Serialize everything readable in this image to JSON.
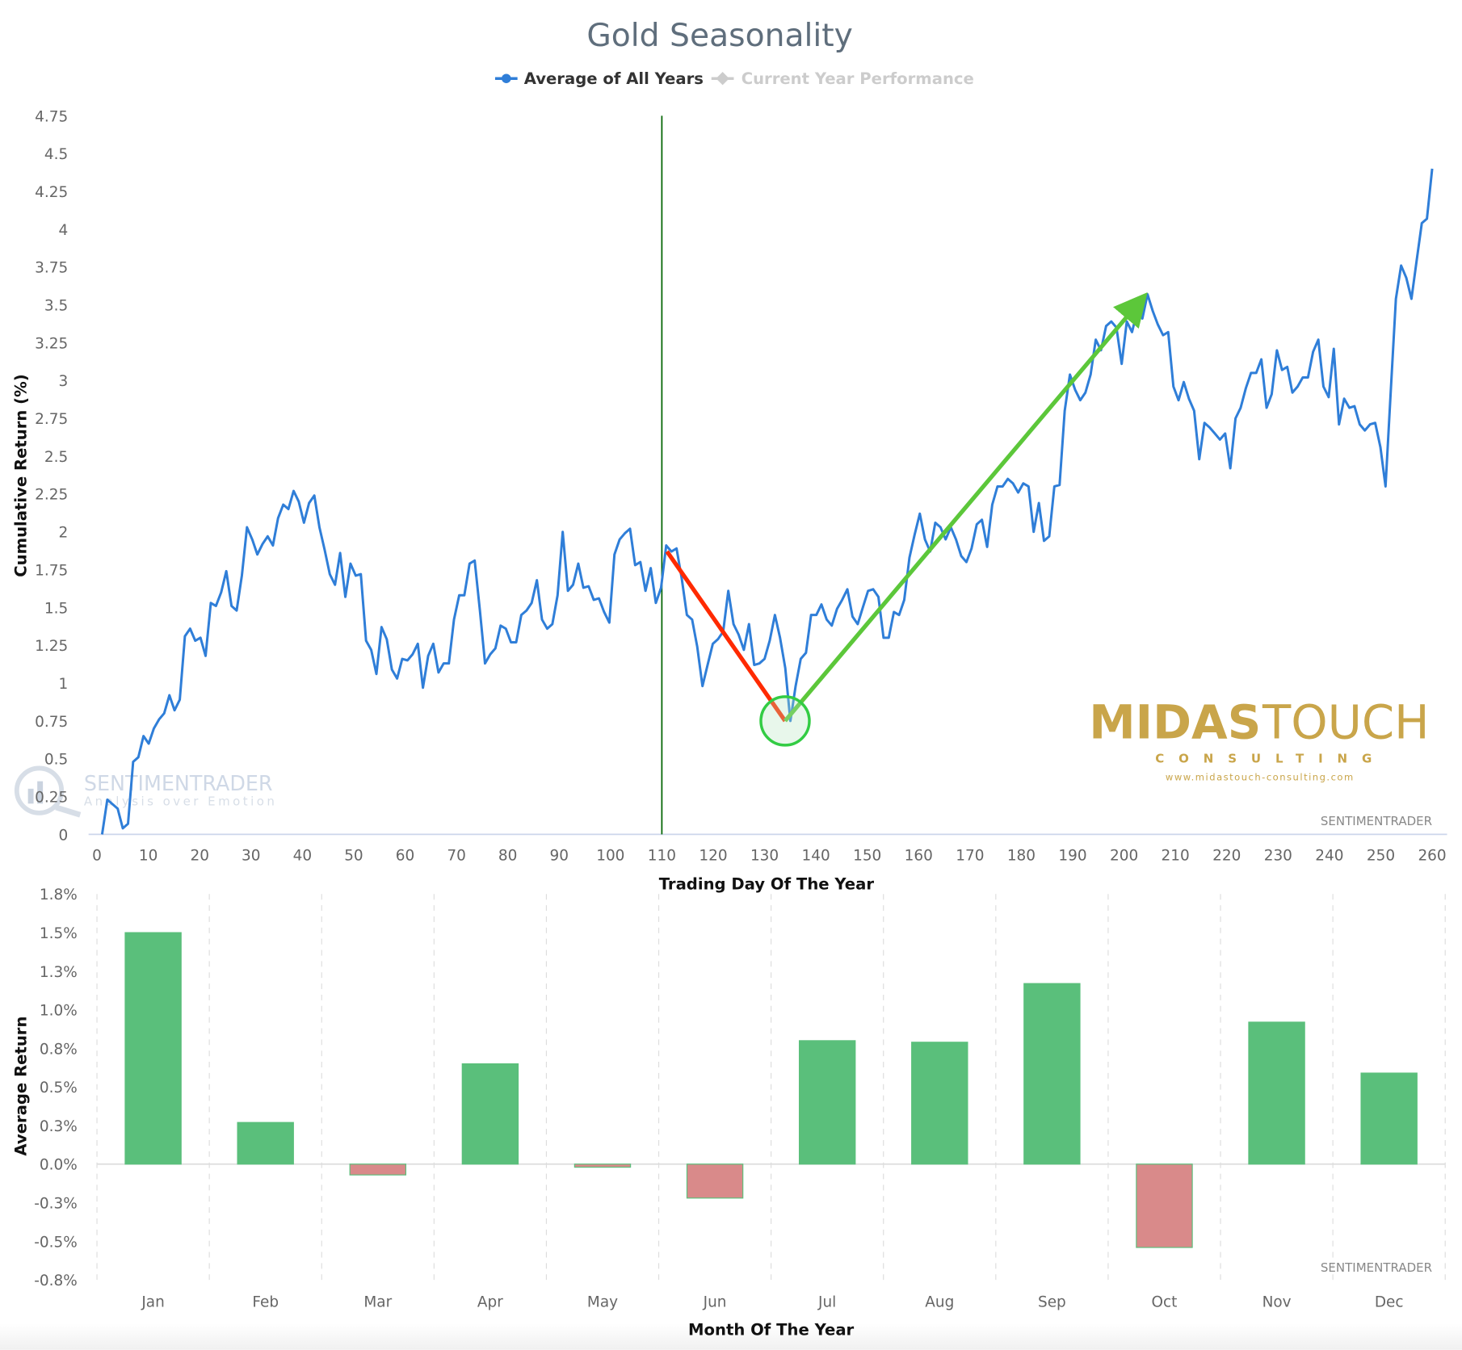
{
  "chart_data": [
    {
      "type": "line",
      "title": "Gold Seasonality",
      "legend": [
        {
          "label": "Average of All Years",
          "color": "#2f7ed8",
          "visible": true
        },
        {
          "label": "Current Year Performance",
          "color": "#cccccc",
          "visible": false
        }
      ],
      "legend_placement": "top-center",
      "xlabel": "Trading Day Of The Year",
      "ylabel": "Cumulative Return (%)",
      "xlim": [
        0,
        260
      ],
      "ylim": [
        0,
        4.75
      ],
      "x_ticks": [
        "0",
        "10",
        "20",
        "30",
        "40",
        "50",
        "60",
        "70",
        "80",
        "90",
        "100",
        "110",
        "120",
        "130",
        "140",
        "150",
        "160",
        "170",
        "180",
        "190",
        "200",
        "210",
        "220",
        "230",
        "240",
        "250",
        "260"
      ],
      "y_ticks": [
        "0",
        "0.25",
        "0.5",
        "0.75",
        "1",
        "1.25",
        "1.5",
        "1.75",
        "2",
        "2.25",
        "2.5",
        "2.75",
        "3",
        "3.25",
        "3.5",
        "3.75",
        "4",
        "4.25",
        "4.5",
        "4.75"
      ],
      "x_start_day": 1,
      "x_end_day": 260,
      "series": [
        {
          "name": "Average of All Years",
          "values": [
            0,
            0.23,
            0.2,
            0.17,
            0.04,
            0.07,
            0.48,
            0.51,
            0.65,
            0.6,
            0.7,
            0.76,
            0.8,
            0.92,
            0.82,
            0.89,
            1.31,
            1.36,
            1.28,
            1.3,
            1.18,
            1.53,
            1.51,
            1.6,
            1.74,
            1.51,
            1.48,
            1.71,
            2.03,
            1.95,
            1.85,
            1.92,
            1.97,
            1.91,
            2.09,
            2.18,
            2.15,
            2.27,
            2.2,
            2.06,
            2.19,
            2.24,
            2.03,
            1.88,
            1.72,
            1.65,
            1.86,
            1.57,
            1.79,
            1.71,
            1.72,
            1.28,
            1.22,
            1.06,
            1.37,
            1.29,
            1.09,
            1.03,
            1.16,
            1.15,
            1.19,
            1.26,
            0.97,
            1.18,
            1.26,
            1.07,
            1.13,
            1.13,
            1.42,
            1.58,
            1.58,
            1.79,
            1.81,
            1.48,
            1.13,
            1.19,
            1.23,
            1.38,
            1.36,
            1.27,
            1.27,
            1.45,
            1.48,
            1.53,
            1.68,
            1.42,
            1.36,
            1.39,
            1.58,
            2.0,
            1.61,
            1.65,
            1.79,
            1.63,
            1.64,
            1.55,
            1.56,
            1.47,
            1.4,
            1.85,
            1.95,
            1.99,
            2.02,
            1.78,
            1.8,
            1.61,
            1.76,
            1.53,
            1.63,
            1.91,
            1.87,
            1.89,
            1.69,
            1.45,
            1.42,
            1.24,
            0.98,
            1.12,
            1.26,
            1.29,
            1.34,
            1.61,
            1.39,
            1.32,
            1.22,
            1.39,
            1.12,
            1.13,
            1.16,
            1.28,
            1.45,
            1.3,
            1.1,
            0.75,
            0.98,
            1.16,
            1.2,
            1.45,
            1.45,
            1.52,
            1.42,
            1.38,
            1.49,
            1.55,
            1.62,
            1.44,
            1.39,
            1.5,
            1.61,
            1.62,
            1.57,
            1.3,
            1.3,
            1.47,
            1.45,
            1.55,
            1.83,
            1.98,
            2.12,
            1.95,
            1.87,
            2.06,
            2.03,
            1.95,
            2.03,
            1.95,
            1.84,
            1.8,
            1.89,
            2.05,
            2.08,
            1.9,
            2.18,
            2.3,
            2.3,
            2.35,
            2.32,
            2.26,
            2.32,
            2.3,
            2.0,
            2.19,
            1.94,
            1.97,
            2.3,
            2.31,
            2.8,
            3.04,
            2.94,
            2.87,
            2.92,
            3.04,
            3.27,
            3.2,
            3.36,
            3.39,
            3.35,
            3.11,
            3.39,
            3.32,
            3.46,
            3.41,
            3.57,
            3.46,
            3.37,
            3.3,
            3.32,
            2.96,
            2.87,
            2.99,
            2.88,
            2.8,
            2.48,
            2.72,
            2.69,
            2.65,
            2.61,
            2.65,
            2.42,
            2.75,
            2.82,
            2.95,
            3.05,
            3.05,
            3.14,
            2.82,
            2.91,
            3.2,
            3.07,
            3.09,
            2.92,
            2.96,
            3.02,
            3.02,
            3.19,
            3.27,
            2.96,
            2.89,
            3.21,
            2.71,
            2.88,
            2.82,
            2.83,
            2.71,
            2.67,
            2.71,
            2.72,
            2.56,
            2.3,
            2.93,
            3.54,
            3.76,
            3.68,
            3.54,
            3.79,
            4.04,
            4.07,
            4.4
          ]
        }
      ],
      "annotations": {
        "vertical_marker_day": 110,
        "decline_line": {
          "from": [
            111,
            1.87
          ],
          "to": [
            134,
            0.75
          ],
          "color": "#ff2a00"
        },
        "rise_arrow": {
          "from": [
            134,
            0.75
          ],
          "to": [
            203,
            3.52
          ],
          "color": "#5cc73a"
        },
        "low_circle": {
          "at": [
            134,
            0.75
          ],
          "color": "#33cc44"
        }
      },
      "credit": "SENTIMENTRADER"
    },
    {
      "type": "bar",
      "xlabel": "Month Of The Year",
      "ylabel": "Average Return",
      "categories": [
        "Jan",
        "Feb",
        "Mar",
        "Apr",
        "May",
        "Jun",
        "Jul",
        "Aug",
        "Sep",
        "Oct",
        "Nov",
        "Dec"
      ],
      "values": [
        1.5,
        0.27,
        -0.07,
        0.65,
        -0.02,
        -0.22,
        0.8,
        0.79,
        1.17,
        -0.54,
        0.92,
        0.59
      ],
      "ylim": [
        -0.75,
        1.75
      ],
      "y_ticks": [
        "-0.8%",
        "-0.5%",
        "-0.3%",
        "0.0%",
        "0.3%",
        "0.5%",
        "0.8%",
        "1.0%",
        "1.3%",
        "1.5%",
        "1.8%"
      ],
      "positive_color": "#5abf7b",
      "negative_color": "#d98a8a",
      "grid": "vertical-dashed",
      "credit": "SENTIMENTRADER"
    }
  ],
  "watermarks": {
    "sentimentrader_name": "SENTIMENTRADER",
    "sentimentrader_tagline": "Analysis over Emotion",
    "midas_word1": "MIDAS",
    "midas_word2": "TOUCH",
    "midas_sub": "CONSULTING",
    "midas_url": "www.midastouch-consulting.com",
    "gold_color": "#c9a54a"
  }
}
